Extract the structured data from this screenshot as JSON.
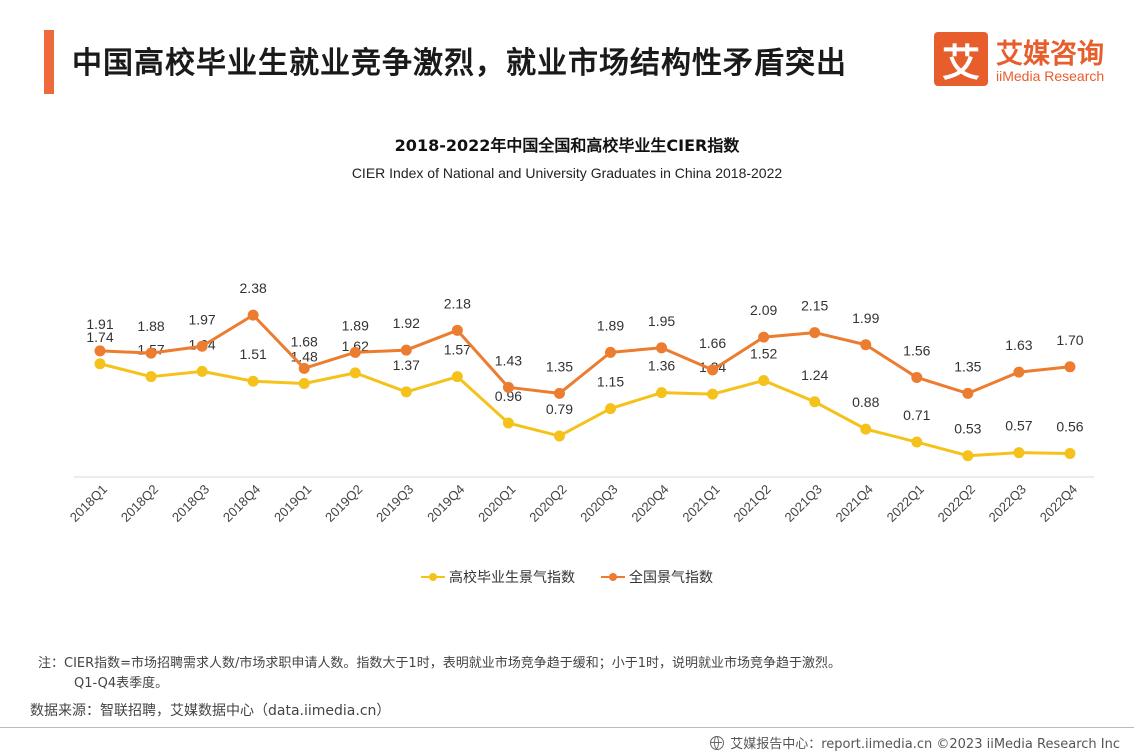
{
  "header": {
    "title": "中国高校毕业生就业竞争激烈，就业市场结构性矛盾突出",
    "logo_mark": "艾",
    "logo_cn": "艾媒咨询",
    "logo_en": "iiMedia Research",
    "accent_color": "#ef6a3a"
  },
  "chart_data": {
    "type": "line",
    "title": "2018-2022年中国全国和高校毕业生CIER指数",
    "subtitle": "CIER Index of National and University Graduates in China 2018-2022",
    "categories": [
      "2018Q1",
      "2018Q2",
      "2018Q3",
      "2018Q4",
      "2019Q1",
      "2019Q2",
      "2019Q3",
      "2019Q4",
      "2020Q1",
      "2020Q2",
      "2020Q3",
      "2020Q4",
      "2021Q1",
      "2021Q2",
      "2021Q3",
      "2021Q4",
      "2022Q1",
      "2022Q2",
      "2022Q3",
      "2022Q4"
    ],
    "series": [
      {
        "name": "高校毕业生景气指数",
        "color": "#f5c21b",
        "values": [
          1.74,
          1.57,
          1.64,
          1.51,
          1.48,
          1.62,
          1.37,
          1.57,
          0.96,
          0.79,
          1.15,
          1.36,
          1.34,
          1.52,
          1.24,
          0.88,
          0.71,
          0.53,
          0.57,
          0.56
        ]
      },
      {
        "name": "全国景气指数",
        "color": "#ec7c30",
        "values": [
          1.91,
          1.88,
          1.97,
          2.38,
          1.68,
          1.89,
          1.92,
          2.18,
          1.43,
          1.35,
          1.89,
          1.95,
          1.66,
          2.09,
          2.15,
          1.99,
          1.56,
          1.35,
          1.63,
          1.7
        ]
      }
    ],
    "legend_position": "bottom",
    "grid": false,
    "data_labels": true
  },
  "notes": {
    "line1": "注：CIER指数=市场招聘需求人数/市场求职申请人数。指数大于1时，表明就业市场竞争趋于缓和；小于1时，说明就业市场竞争趋于激烈。",
    "line2": "Q1-Q4表季度。",
    "source": "数据来源：智联招聘，艾媒数据中心（data.iimedia.cn）"
  },
  "footer": {
    "text": "艾媒报告中心：report.iimedia.cn  ©2023  iiMedia Research  Inc"
  }
}
